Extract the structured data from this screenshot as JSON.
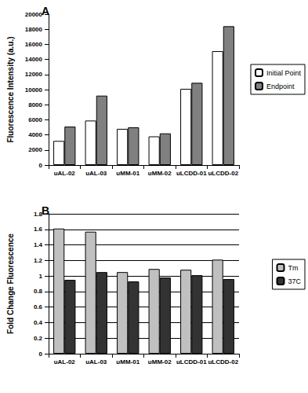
{
  "chart_data": [
    {
      "type": "bar",
      "title": "A",
      "categories": [
        "uAL-02",
        "uAL-03",
        "uMM-01",
        "uMM-02",
        "uLCDD-01",
        "uLCDD-02"
      ],
      "series": [
        {
          "name": "Initial Point",
          "color": "#ffffff",
          "values": [
            3200,
            5900,
            4800,
            3800,
            10100,
            15100
          ]
        },
        {
          "name": "Endpoint",
          "color": "#808080",
          "values": [
            5100,
            9200,
            5000,
            4200,
            10900,
            18400
          ]
        }
      ],
      "y_label": "Fluorescence Intensity (a.u.)",
      "ylim": [
        0,
        20000
      ],
      "yticks": [
        0,
        2000,
        4000,
        6000,
        8000,
        10000,
        12000,
        14000,
        16000,
        18000,
        20000
      ],
      "grid": false,
      "legend": "right"
    },
    {
      "type": "bar",
      "title": "B",
      "categories": [
        "uAL-02",
        "uAL-03",
        "uMM-01",
        "uMM-02",
        "uLCDD-01",
        "uLCDD-02"
      ],
      "series": [
        {
          "name": "Tm",
          "color": "#c0c0c0",
          "values": [
            1.61,
            1.57,
            1.05,
            1.09,
            1.08,
            1.21
          ]
        },
        {
          "name": "37C",
          "color": "#333333",
          "values": [
            0.95,
            1.05,
            0.93,
            0.98,
            1.01,
            0.96
          ]
        }
      ],
      "y_label": "Fold Change Fluorescence",
      "ylim": [
        0,
        1.8
      ],
      "yticks": [
        0,
        0.2,
        0.4,
        0.6,
        0.8,
        1,
        1.2,
        1.4,
        1.6,
        1.8
      ],
      "grid": true,
      "legend": "right"
    }
  ]
}
